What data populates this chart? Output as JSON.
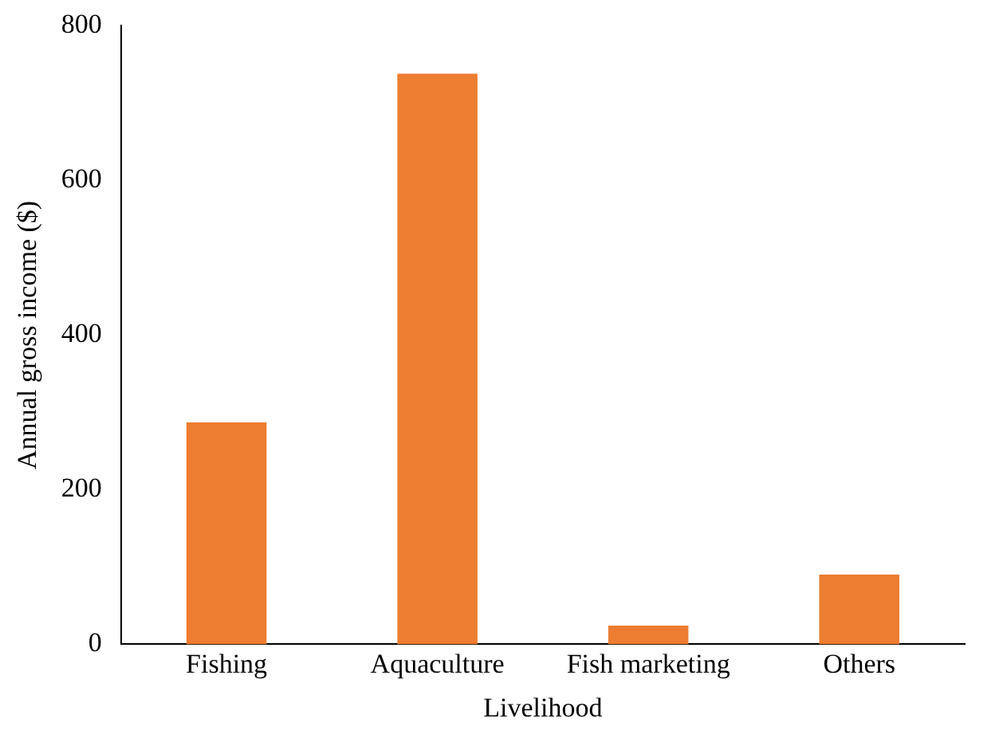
{
  "chart_data": {
    "type": "bar",
    "xlabel": "Livelihood",
    "ylabel": "Annual gross income ($)",
    "categories": [
      "Fishing",
      "Aquaculture",
      "Fish marketing",
      "Others"
    ],
    "values": [
      287,
      738,
      24,
      90
    ],
    "color": "#ed7d31",
    "ylim": [
      0,
      800
    ],
    "yticks": [
      0,
      200,
      400,
      600,
      800
    ],
    "grid": false,
    "legend": false
  }
}
